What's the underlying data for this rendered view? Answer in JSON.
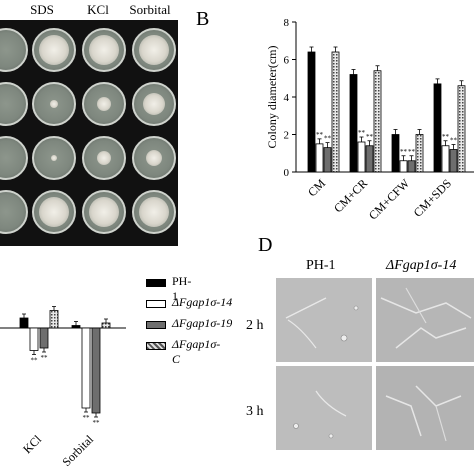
{
  "panels": {
    "A": {
      "column_labels": [
        "SDS",
        "KCl",
        "Sorbital"
      ]
    },
    "B": {
      "letter": "B",
      "ylabel": "Colony diameter(cm)",
      "yticks": [
        "0",
        "2",
        "4",
        "6",
        "8"
      ]
    },
    "C": {
      "categories": [
        "KCl",
        "Sorbital"
      ],
      "legend": [
        {
          "label": "PH-1"
        },
        {
          "label": "ΔFgap1σ-14"
        },
        {
          "label": "ΔFgap1σ-19"
        },
        {
          "label": "ΔFgap1σ-C"
        }
      ]
    },
    "D": {
      "letter": "D",
      "column_labels": [
        "PH-1",
        "ΔFgap1σ-14"
      ],
      "row_labels": [
        "2 h",
        "3 h"
      ]
    }
  },
  "chart_data": [
    {
      "type": "bar",
      "categories": [
        "CM",
        "CM+CR",
        "CM+CFW",
        "CM+SDS"
      ],
      "ylabel": "Colony diameter(cm)",
      "ylim": [
        0,
        8
      ],
      "series": [
        {
          "name": "PH-1",
          "values": [
            6.4,
            5.2,
            2.0,
            4.7
          ]
        },
        {
          "name": "ΔFgap1σ-14",
          "values": [
            1.5,
            1.6,
            0.6,
            1.4
          ]
        },
        {
          "name": "ΔFgap1σ-19",
          "values": [
            1.3,
            1.4,
            0.6,
            1.2
          ]
        },
        {
          "name": "ΔFgap1σ-C",
          "values": [
            6.4,
            5.4,
            2.0,
            4.6
          ]
        }
      ],
      "annotations": [
        "**",
        "**",
        "**",
        "**",
        "**",
        "**",
        "**"
      ]
    },
    {
      "type": "bar",
      "categories": [
        "KCl",
        "Sorbital"
      ],
      "series": [
        {
          "name": "PH-1",
          "values": [
            0.2,
            0.05
          ]
        },
        {
          "name": "ΔFgap1σ-14",
          "values": [
            -0.45,
            -1.6
          ]
        },
        {
          "name": "ΔFgap1σ-19",
          "values": [
            -0.4,
            -1.7
          ]
        },
        {
          "name": "ΔFgap1σ-C",
          "values": [
            0.35,
            0.1
          ]
        }
      ],
      "annotations": [
        "**",
        "**",
        "**",
        "**"
      ]
    }
  ],
  "colors": {
    "ph1": "#000000",
    "mut14": "#ffffff",
    "mut19": "#6e6e6e",
    "comp": "#9a9a9a"
  }
}
